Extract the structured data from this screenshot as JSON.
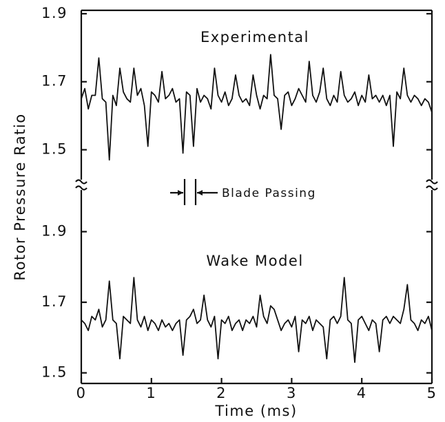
{
  "chart_data": [
    {
      "type": "line",
      "ylabel": "Rotor Pressure Ratio",
      "annotation": "Blade Passing",
      "x": [
        0,
        0.05,
        0.1,
        0.15,
        0.2,
        0.25,
        0.3,
        0.35,
        0.4,
        0.45,
        0.5,
        0.55,
        0.6,
        0.65,
        0.7,
        0.75,
        0.8,
        0.85,
        0.9,
        0.95,
        1,
        1.05,
        1.1,
        1.15,
        1.2,
        1.25,
        1.3,
        1.35,
        1.4,
        1.45,
        1.5,
        1.55,
        1.6,
        1.65,
        1.7,
        1.75,
        1.8,
        1.85,
        1.9,
        1.95,
        2,
        2.05,
        2.1,
        2.15,
        2.2,
        2.25,
        2.3,
        2.35,
        2.4,
        2.45,
        2.5,
        2.55,
        2.6,
        2.65,
        2.7,
        2.75,
        2.8,
        2.85,
        2.9,
        2.95,
        3,
        3.05,
        3.1,
        3.15,
        3.2,
        3.25,
        3.3,
        3.35,
        3.4,
        3.45,
        3.5,
        3.55,
        3.6,
        3.65,
        3.7,
        3.75,
        3.8,
        3.85,
        3.9,
        3.95,
        4,
        4.05,
        4.1,
        4.15,
        4.2,
        4.25,
        4.3,
        4.35,
        4.4,
        4.45,
        4.5,
        4.55,
        4.6,
        4.65,
        4.7,
        4.75,
        4.8,
        4.85,
        4.9,
        4.95,
        5
      ],
      "series": [
        {
          "name": "Experimental",
          "color": "#111111",
          "values": [
            1.65,
            1.68,
            1.62,
            1.66,
            1.66,
            1.77,
            1.65,
            1.64,
            1.47,
            1.66,
            1.63,
            1.74,
            1.67,
            1.65,
            1.64,
            1.74,
            1.66,
            1.68,
            1.63,
            1.51,
            1.67,
            1.66,
            1.64,
            1.73,
            1.65,
            1.66,
            1.68,
            1.64,
            1.65,
            1.49,
            1.67,
            1.66,
            1.51,
            1.68,
            1.64,
            1.66,
            1.65,
            1.62,
            1.74,
            1.66,
            1.64,
            1.67,
            1.63,
            1.65,
            1.72,
            1.66,
            1.64,
            1.65,
            1.63,
            1.72,
            1.66,
            1.62,
            1.66,
            1.65,
            1.78,
            1.66,
            1.65,
            1.56,
            1.66,
            1.67,
            1.63,
            1.65,
            1.68,
            1.66,
            1.64,
            1.76,
            1.66,
            1.64,
            1.67,
            1.74,
            1.65,
            1.63,
            1.66,
            1.64,
            1.73,
            1.66,
            1.64,
            1.65,
            1.67,
            1.63,
            1.66,
            1.64,
            1.72,
            1.65,
            1.66,
            1.64,
            1.66,
            1.63,
            1.66,
            1.51,
            1.67,
            1.65,
            1.74,
            1.66,
            1.64,
            1.66,
            1.65,
            1.63,
            1.65,
            1.64,
            1.61
          ]
        }
      ],
      "xlim": [
        0,
        5
      ],
      "ylim": [
        1.41,
        1.91
      ],
      "yticks": [
        1.5,
        1.7,
        1.9
      ]
    },
    {
      "type": "line",
      "xlabel": "Time (ms)",
      "x": [
        0,
        0.05,
        0.1,
        0.15,
        0.2,
        0.25,
        0.3,
        0.35,
        0.4,
        0.45,
        0.5,
        0.55,
        0.6,
        0.65,
        0.7,
        0.75,
        0.8,
        0.85,
        0.9,
        0.95,
        1,
        1.05,
        1.1,
        1.15,
        1.2,
        1.25,
        1.3,
        1.35,
        1.4,
        1.45,
        1.5,
        1.55,
        1.6,
        1.65,
        1.7,
        1.75,
        1.8,
        1.85,
        1.9,
        1.95,
        2,
        2.05,
        2.1,
        2.15,
        2.2,
        2.25,
        2.3,
        2.35,
        2.4,
        2.45,
        2.5,
        2.55,
        2.6,
        2.65,
        2.7,
        2.75,
        2.8,
        2.85,
        2.9,
        2.95,
        3,
        3.05,
        3.1,
        3.15,
        3.2,
        3.25,
        3.3,
        3.35,
        3.4,
        3.45,
        3.5,
        3.55,
        3.6,
        3.65,
        3.7,
        3.75,
        3.8,
        3.85,
        3.9,
        3.95,
        4,
        4.05,
        4.1,
        4.15,
        4.2,
        4.25,
        4.3,
        4.35,
        4.4,
        4.45,
        4.5,
        4.55,
        4.6,
        4.65,
        4.7,
        4.75,
        4.8,
        4.85,
        4.9,
        4.95,
        5
      ],
      "series": [
        {
          "name": "Wake Model",
          "color": "#111111",
          "values": [
            1.65,
            1.64,
            1.62,
            1.66,
            1.65,
            1.68,
            1.63,
            1.65,
            1.76,
            1.65,
            1.64,
            1.54,
            1.66,
            1.65,
            1.64,
            1.77,
            1.65,
            1.63,
            1.66,
            1.62,
            1.65,
            1.64,
            1.62,
            1.65,
            1.63,
            1.64,
            1.62,
            1.64,
            1.65,
            1.55,
            1.65,
            1.66,
            1.68,
            1.64,
            1.65,
            1.72,
            1.65,
            1.63,
            1.66,
            1.54,
            1.65,
            1.64,
            1.66,
            1.62,
            1.64,
            1.65,
            1.62,
            1.65,
            1.64,
            1.66,
            1.63,
            1.72,
            1.66,
            1.64,
            1.69,
            1.68,
            1.65,
            1.62,
            1.64,
            1.65,
            1.63,
            1.66,
            1.56,
            1.65,
            1.64,
            1.66,
            1.62,
            1.65,
            1.64,
            1.63,
            1.54,
            1.65,
            1.66,
            1.64,
            1.66,
            1.77,
            1.65,
            1.64,
            1.53,
            1.65,
            1.66,
            1.64,
            1.62,
            1.65,
            1.64,
            1.56,
            1.65,
            1.66,
            1.64,
            1.66,
            1.65,
            1.64,
            1.68,
            1.75,
            1.65,
            1.64,
            1.62,
            1.65,
            1.64,
            1.66,
            1.62
          ]
        }
      ],
      "xlim": [
        0,
        5
      ],
      "ylim": [
        1.47,
        2.02
      ],
      "yticks": [
        1.5,
        1.7,
        1.9
      ],
      "xticks": [
        0,
        1,
        2,
        3,
        4,
        5
      ]
    }
  ]
}
